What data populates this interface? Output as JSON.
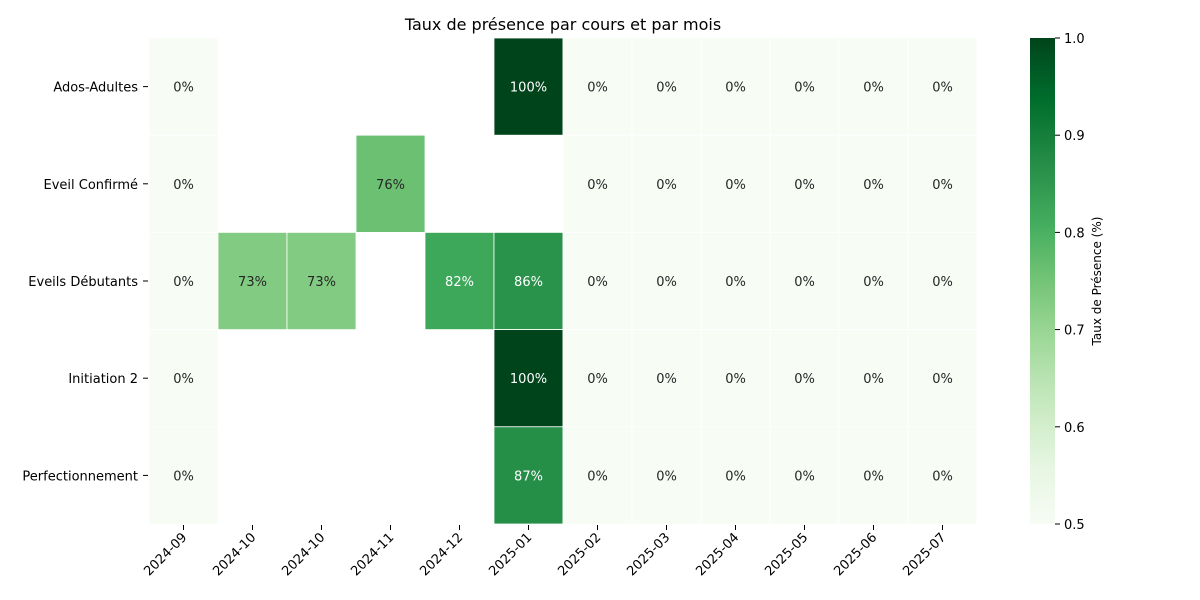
{
  "chart_data": {
    "type": "heatmap",
    "title": "Taux de présence par cours et par mois",
    "rows": [
      "Ados-Adultes",
      "Eveil Confirmé",
      "Eveils Débutants",
      "Initiation 2",
      "Perfectionnement"
    ],
    "columns": [
      "2024-09",
      "2024-10",
      "2024-10",
      "2024-11",
      "2024-12",
      "2025-01",
      "2025-02",
      "2025-03",
      "2025-04",
      "2025-05",
      "2025-06",
      "2025-07"
    ],
    "values": [
      [
        0,
        null,
        null,
        null,
        null,
        1.0,
        0,
        0,
        0,
        0,
        0,
        0
      ],
      [
        0,
        null,
        null,
        0.76,
        null,
        null,
        0,
        0,
        0,
        0,
        0,
        0
      ],
      [
        0,
        0.73,
        0.73,
        null,
        0.82,
        0.86,
        0,
        0,
        0,
        0,
        0,
        0
      ],
      [
        0,
        null,
        null,
        null,
        null,
        1.0,
        0,
        0,
        0,
        0,
        0,
        0
      ],
      [
        0,
        null,
        null,
        null,
        null,
        0.87,
        0,
        0,
        0,
        0,
        0,
        0
      ]
    ],
    "labels": [
      [
        "0%",
        "",
        "",
        "",
        "",
        "100%",
        "0%",
        "0%",
        "0%",
        "0%",
        "0%",
        "0%"
      ],
      [
        "0%",
        "",
        "",
        "76%",
        "",
        "",
        "0%",
        "0%",
        "0%",
        "0%",
        "0%",
        "0%"
      ],
      [
        "0%",
        "73%",
        "73%",
        "",
        "82%",
        "86%",
        "0%",
        "0%",
        "0%",
        "0%",
        "0%",
        "0%"
      ],
      [
        "0%",
        "",
        "",
        "",
        "",
        "100%",
        "0%",
        "0%",
        "0%",
        "0%",
        "0%",
        "0%"
      ],
      [
        "0%",
        "",
        "",
        "",
        "",
        "87%",
        "0%",
        "0%",
        "0%",
        "0%",
        "0%",
        "0%"
      ]
    ],
    "colorbar": {
      "label": "Taux de Présence (%)",
      "range": [
        0.5,
        1.0
      ],
      "ticks": [
        "0.5",
        "0.6",
        "0.7",
        "0.8",
        "0.9",
        "1.0"
      ],
      "colormap": "Greens"
    },
    "grid": false,
    "legend": "colorbar-right"
  }
}
